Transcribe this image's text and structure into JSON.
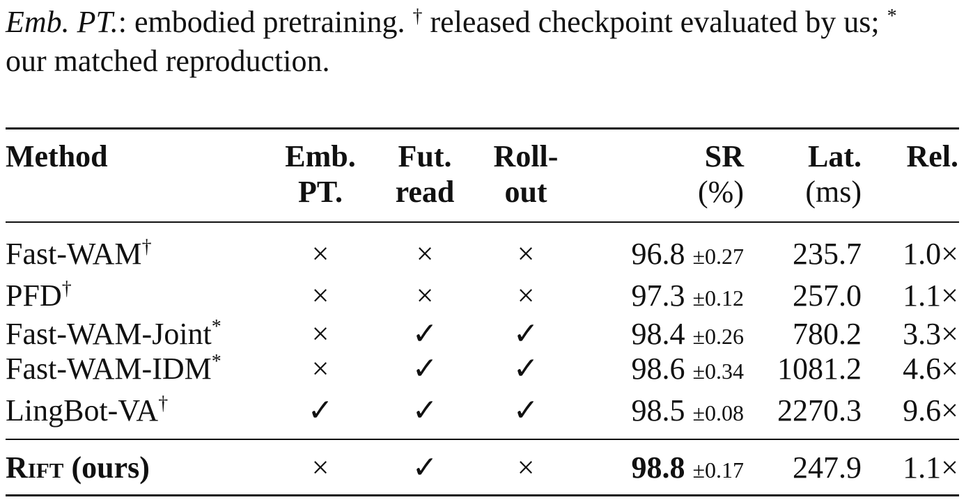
{
  "caption": {
    "term": "Emb. PT.",
    "text1": ": embodied pretraining.",
    "dagger": "†",
    "text2": "released checkpoint evaluated by us;",
    "star": "*",
    "text3": "our matched reproduction."
  },
  "table": {
    "headers": [
      [
        "Method"
      ],
      [
        "Emb.",
        "PT."
      ],
      [
        "Fut.",
        "read"
      ],
      [
        "Roll-",
        "out"
      ],
      [
        "SR",
        "(%)"
      ],
      [
        "Lat.",
        "(ms)"
      ],
      [
        "Rel."
      ]
    ],
    "rows": [
      {
        "method": "Fast-WAM",
        "mark": "†",
        "emb": "×",
        "fut": "×",
        "roll": "×",
        "sr": "96.8",
        "sr_std": "±0.27",
        "lat": "235.7",
        "rel": "1.0×"
      },
      {
        "method": "PFD",
        "mark": "†",
        "emb": "×",
        "fut": "×",
        "roll": "×",
        "sr": "97.3",
        "sr_std": "±0.12",
        "lat": "257.0",
        "rel": "1.1×"
      },
      {
        "method": "Fast-WAM-Joint",
        "mark": "*",
        "emb": "×",
        "fut": "✓",
        "roll": "✓",
        "sr": "98.4",
        "sr_std": "±0.26",
        "lat": "780.2",
        "rel": "3.3×"
      },
      {
        "method": "Fast-WAM-IDM",
        "mark": "*",
        "emb": "×",
        "fut": "✓",
        "roll": "✓",
        "sr": "98.6",
        "sr_std": "±0.34",
        "lat": "1081.2",
        "rel": "4.6×"
      },
      {
        "method": "LingBot-VA",
        "mark": "†",
        "emb": "✓",
        "fut": "✓",
        "roll": "✓",
        "sr": "98.5",
        "sr_std": "±0.08",
        "lat": "2270.3",
        "rel": "9.6×"
      },
      {
        "method": "Rift",
        "method_suffix": "(ours)",
        "emb": "×",
        "fut": "✓",
        "roll": "×",
        "sr": "98.8",
        "sr_std": "±0.17",
        "lat": "247.9",
        "rel": "1.1×"
      }
    ]
  }
}
